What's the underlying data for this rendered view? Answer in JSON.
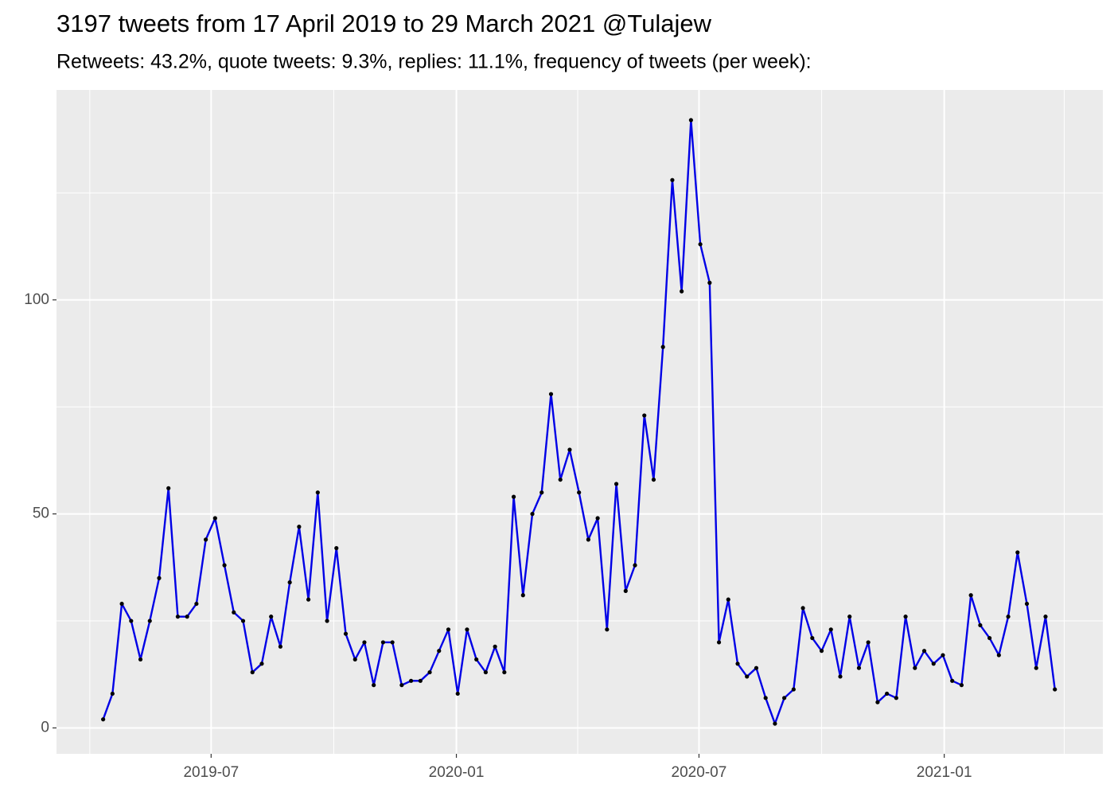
{
  "chart_data": {
    "type": "line",
    "title": "3197 tweets from 17 April 2019 to 29 March 2021 @Tulajew",
    "subtitle": "Retweets: 43.2%, quote tweets: 9.3%, replies: 11.1%, frequency of tweets (per week):",
    "x": [
      "2019-04-11",
      "2019-04-18",
      "2019-04-25",
      "2019-05-02",
      "2019-05-09",
      "2019-05-16",
      "2019-05-23",
      "2019-05-30",
      "2019-06-06",
      "2019-06-13",
      "2019-06-20",
      "2019-06-27",
      "2019-07-04",
      "2019-07-11",
      "2019-07-18",
      "2019-07-25",
      "2019-08-01",
      "2019-08-08",
      "2019-08-15",
      "2019-08-22",
      "2019-08-29",
      "2019-09-05",
      "2019-09-12",
      "2019-09-19",
      "2019-09-26",
      "2019-10-03",
      "2019-10-10",
      "2019-10-17",
      "2019-10-24",
      "2019-10-31",
      "2019-11-07",
      "2019-11-14",
      "2019-11-21",
      "2019-11-28",
      "2019-12-05",
      "2019-12-12",
      "2019-12-19",
      "2019-12-26",
      "2020-01-02",
      "2020-01-09",
      "2020-01-16",
      "2020-01-23",
      "2020-01-30",
      "2020-02-06",
      "2020-02-13",
      "2020-02-20",
      "2020-02-27",
      "2020-03-05",
      "2020-03-12",
      "2020-03-19",
      "2020-03-26",
      "2020-04-02",
      "2020-04-09",
      "2020-04-16",
      "2020-04-23",
      "2020-04-30",
      "2020-05-07",
      "2020-05-14",
      "2020-05-21",
      "2020-05-28",
      "2020-06-04",
      "2020-06-11",
      "2020-06-18",
      "2020-06-25",
      "2020-07-02",
      "2020-07-09",
      "2020-07-16",
      "2020-07-23",
      "2020-07-30",
      "2020-08-06",
      "2020-08-13",
      "2020-08-20",
      "2020-08-27",
      "2020-09-03",
      "2020-09-10",
      "2020-09-17",
      "2020-09-24",
      "2020-10-01",
      "2020-10-08",
      "2020-10-15",
      "2020-10-22",
      "2020-10-29",
      "2020-11-05",
      "2020-11-12",
      "2020-11-19",
      "2020-11-26",
      "2020-12-03",
      "2020-12-10",
      "2020-12-17",
      "2020-12-24",
      "2020-12-31",
      "2021-01-07",
      "2021-01-14",
      "2021-01-21",
      "2021-01-28",
      "2021-02-04",
      "2021-02-11",
      "2021-02-18",
      "2021-02-25",
      "2021-03-04",
      "2021-03-11",
      "2021-03-18",
      "2021-03-25"
    ],
    "series": [
      {
        "color": "#0000e6",
        "point_color": "#000000",
        "values": [
          2,
          8,
          29,
          25,
          16,
          25,
          35,
          56,
          26,
          26,
          29,
          44,
          49,
          38,
          27,
          25,
          13,
          15,
          26,
          19,
          34,
          47,
          30,
          55,
          25,
          42,
          22,
          16,
          20,
          10,
          20,
          20,
          10,
          11,
          11,
          13,
          18,
          23,
          8,
          23,
          16,
          13,
          19,
          13,
          54,
          31,
          50,
          55,
          78,
          58,
          65,
          55,
          44,
          49,
          23,
          57,
          32,
          38,
          73,
          58,
          89,
          128,
          102,
          142,
          113,
          104,
          20,
          30,
          15,
          12,
          14,
          7,
          1,
          7,
          9,
          28,
          21,
          18,
          23,
          12,
          26,
          14,
          20,
          6,
          8,
          7,
          26,
          14,
          18,
          15,
          17,
          11,
          10,
          31,
          24,
          21,
          17,
          26,
          41,
          29,
          14,
          26,
          9
        ]
      }
    ],
    "xlim": [
      "2019-03-07",
      "2021-04-30"
    ],
    "xticks": [
      {
        "value": "2019-07-01",
        "label": "2019-07"
      },
      {
        "value": "2020-01-01",
        "label": "2020-01"
      },
      {
        "value": "2020-07-01",
        "label": "2020-07"
      },
      {
        "value": "2021-01-01",
        "label": "2021-01"
      }
    ],
    "x_minor_ticks": [
      "2019-04-01",
      "2019-10-01",
      "2020-04-01",
      "2020-10-01",
      "2021-04-01"
    ],
    "ylim": [
      -6.05,
      149.05
    ],
    "yticks": [
      0,
      50,
      100
    ],
    "y_minor_ticks": [
      25,
      75,
      125
    ],
    "grid": true
  }
}
